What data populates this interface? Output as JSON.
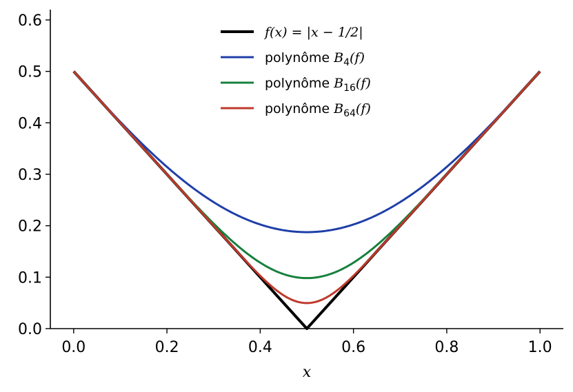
{
  "chart_data": {
    "type": "line",
    "xlabel": "x",
    "ylabel": "",
    "xlim": [
      -0.05,
      1.05
    ],
    "ylim": [
      0,
      0.62
    ],
    "xticks": [
      0.0,
      0.2,
      0.4,
      0.6,
      0.8,
      1.0
    ],
    "yticks": [
      0.0,
      0.1,
      0.2,
      0.3,
      0.4,
      0.5,
      0.6
    ],
    "xtick_labels": [
      "0.0",
      "0.2",
      "0.4",
      "0.6",
      "0.8",
      "1.0"
    ],
    "ytick_labels": [
      "0.0",
      "0.1",
      "0.2",
      "0.3",
      "0.4",
      "0.5",
      "0.6"
    ],
    "grid": false,
    "legend_position": "top-center",
    "series": [
      {
        "name": "f(x) = |x − 1/2|",
        "legend": {
          "pre": "f(x) = |x − 1/2|",
          "sub": "",
          "post": ""
        },
        "kind": "abs",
        "color": "#000000",
        "x": [
          0.0,
          0.5,
          1.0
        ],
        "y": [
          0.5,
          0.0,
          0.5
        ]
      },
      {
        "name": "polynôme B4(f)",
        "legend": {
          "pre": "polynôme B",
          "sub": "4",
          "post": "(f)"
        },
        "kind": "bernstein",
        "degree": 4,
        "color": "#1f3fa8",
        "x": [
          0.0,
          0.1,
          0.2,
          0.3,
          0.4,
          0.5,
          0.6,
          0.7,
          0.8,
          0.9,
          1.0
        ],
        "y": [
          0.5,
          0.41,
          0.33,
          0.26,
          0.21,
          0.1875,
          0.21,
          0.26,
          0.33,
          0.41,
          0.5
        ]
      },
      {
        "name": "polynôme B16(f)",
        "legend": {
          "pre": "polynôme B",
          "sub": "16",
          "post": "(f)"
        },
        "kind": "bernstein",
        "degree": 16,
        "color": "#17803d",
        "x": [
          0.0,
          0.1,
          0.2,
          0.3,
          0.4,
          0.5,
          0.6,
          0.7,
          0.8,
          0.9,
          1.0
        ],
        "y": [
          0.5,
          0.4,
          0.3,
          0.21,
          0.14,
          0.098,
          0.14,
          0.21,
          0.3,
          0.4,
          0.5
        ]
      },
      {
        "name": "polynôme B64(f)",
        "legend": {
          "pre": "polynôme B",
          "sub": "64",
          "post": "(f)"
        },
        "kind": "bernstein",
        "degree": 64,
        "color": "#c0392b",
        "x": [
          0.0,
          0.1,
          0.2,
          0.3,
          0.4,
          0.5,
          0.6,
          0.7,
          0.8,
          0.9,
          1.0
        ],
        "y": [
          0.5,
          0.4,
          0.3,
          0.2,
          0.11,
          0.049,
          0.11,
          0.2,
          0.3,
          0.4,
          0.5
        ]
      }
    ]
  }
}
